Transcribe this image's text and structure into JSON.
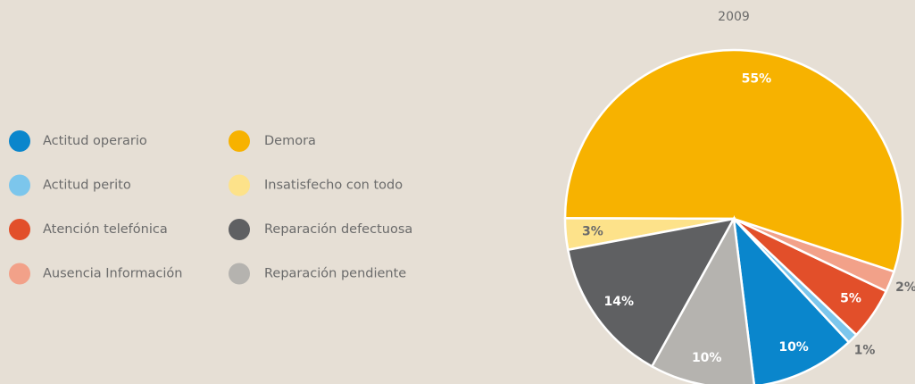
{
  "chart_data": {
    "type": "pie",
    "title": "2009",
    "categories": [
      "Actitud operario",
      "Actitud perito",
      "Atención telefónica",
      "Ausencia Información",
      "Demora",
      "Insatisfecho con todo",
      "Reparación defectuosa",
      "Reparación pendiente"
    ],
    "values": [
      10,
      1,
      5,
      2,
      55,
      3,
      14,
      10
    ],
    "value_labels": [
      "10%",
      "1%",
      "5%",
      "2%",
      "55%",
      "3%",
      "14%",
      "10%"
    ],
    "colors": [
      "#0a86cc",
      "#7cc6ec",
      "#e24f2a",
      "#f2a189",
      "#f7b200",
      "#fde28a",
      "#5f6062",
      "#b5b3af"
    ]
  }
}
